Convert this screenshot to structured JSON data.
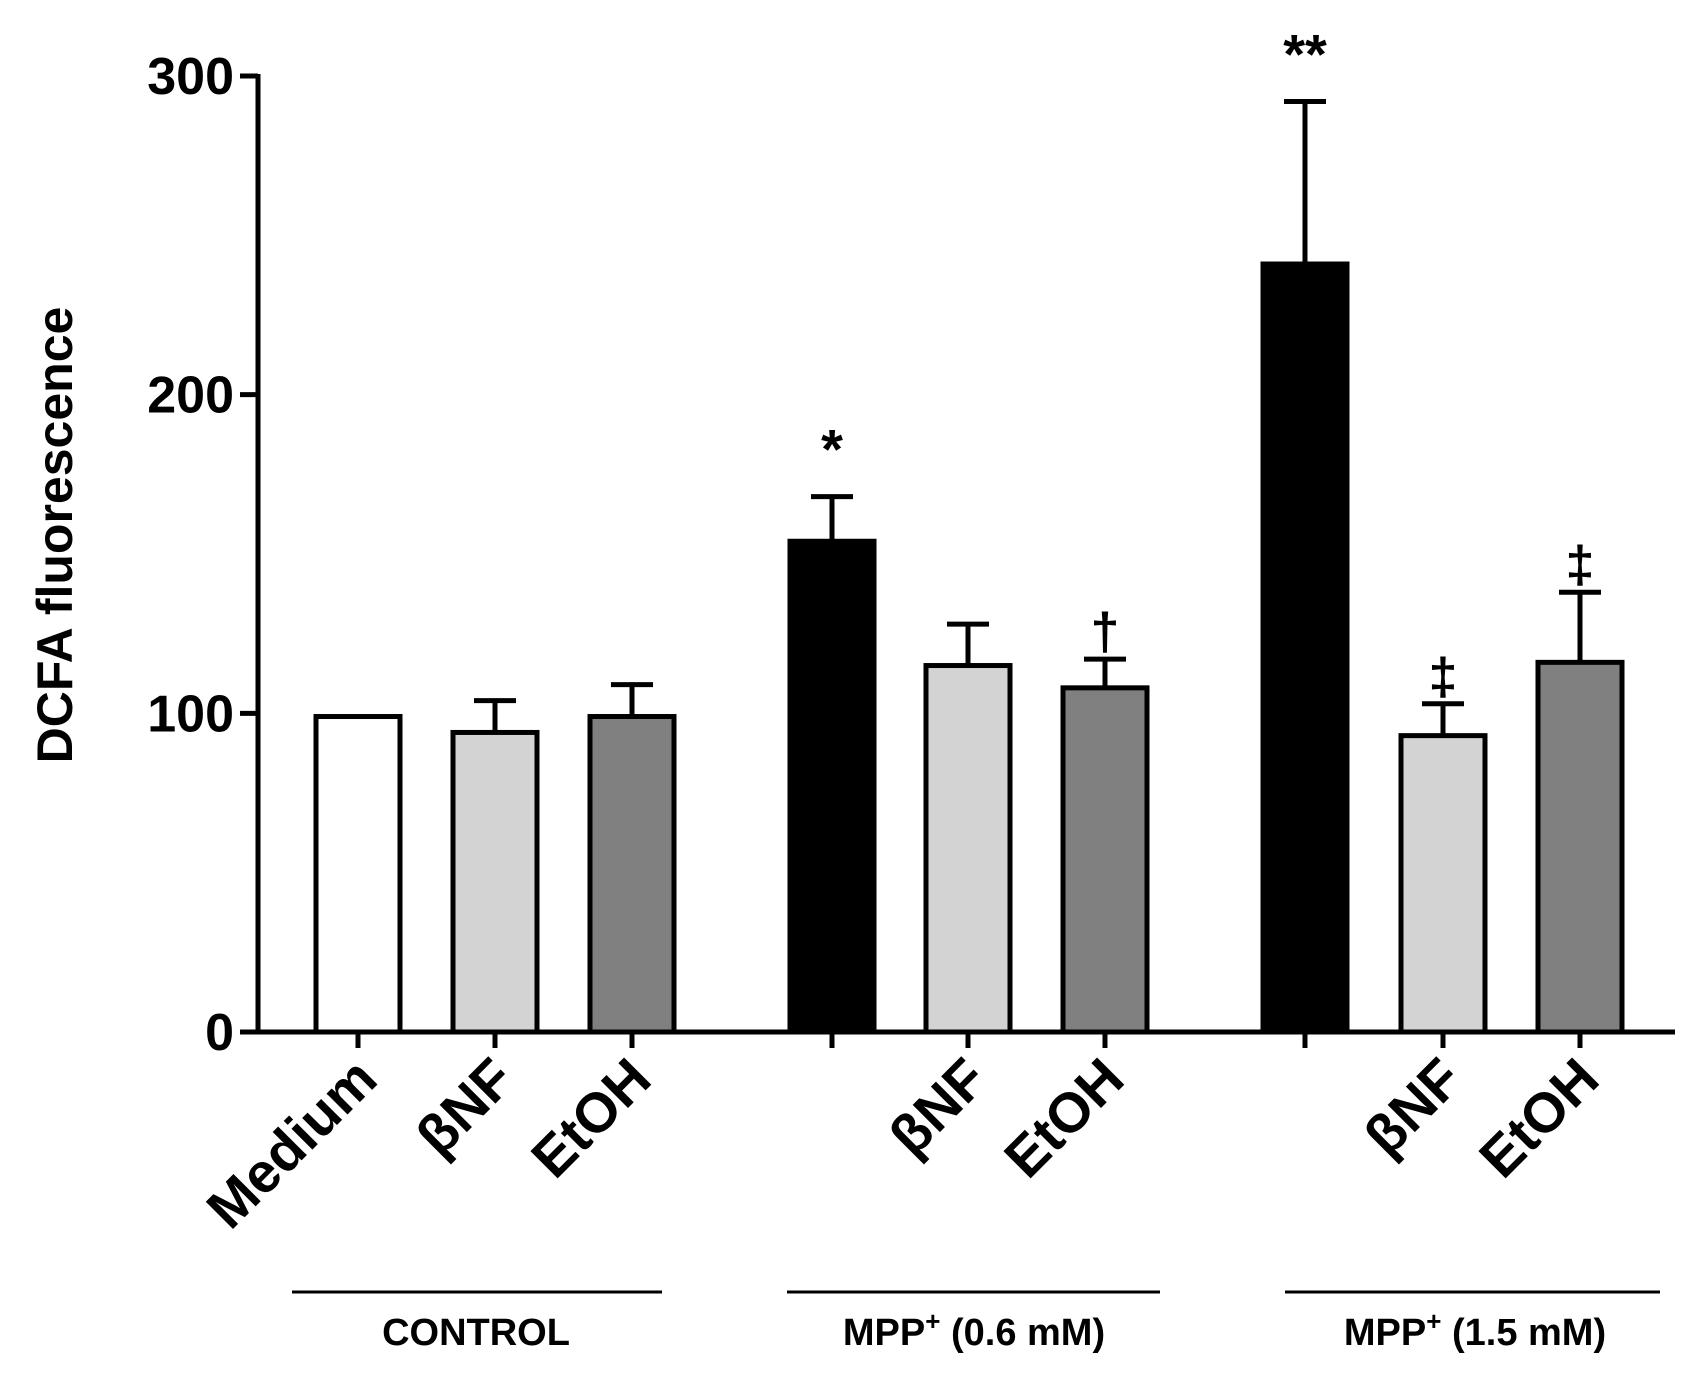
{
  "chart_data": {
    "type": "bar",
    "title": "",
    "xlabel": "",
    "ylabel": "DCFA fluorescence",
    "ylim": [
      0,
      300
    ],
    "yticks": [
      "0",
      "100",
      "200",
      "300"
    ],
    "grid": false,
    "groups": [
      {
        "name": "CONTROL",
        "label_main": "CONTROL",
        "label_sup": "",
        "label_rest": "",
        "bars": [
          {
            "label": "Medium",
            "value": 99,
            "error": 0,
            "fill": "#ffffff",
            "annotation": ""
          },
          {
            "label": "βNF",
            "value": 94,
            "error": 10,
            "fill": "#d3d3d3",
            "annotation": ""
          },
          {
            "label": "EtOH",
            "value": 99,
            "error": 10,
            "fill": "#808080",
            "annotation": ""
          }
        ]
      },
      {
        "name": "MPP+ (0.6 mM)",
        "label_main": "MPP",
        "label_sup": "+",
        "label_rest": " (0.6 mM)",
        "bars": [
          {
            "label": "",
            "value": 154,
            "error": 14,
            "fill": "#000000",
            "annotation": "*"
          },
          {
            "label": "βNF",
            "value": 115,
            "error": 13,
            "fill": "#d3d3d3",
            "annotation": ""
          },
          {
            "label": "EtOH",
            "value": 108,
            "error": 9,
            "fill": "#808080",
            "annotation": "†"
          }
        ]
      },
      {
        "name": "MPP+ (1.5 mM)",
        "label_main": "MPP",
        "label_sup": "+",
        "label_rest": " (1.5 mM)",
        "bars": [
          {
            "label": "",
            "value": 241,
            "error": 51,
            "fill": "#000000",
            "annotation": "**"
          },
          {
            "label": "βNF",
            "value": 93,
            "error": 10,
            "fill": "#d3d3d3",
            "annotation": "‡"
          },
          {
            "label": "EtOH",
            "value": 116,
            "error": 22,
            "fill": "#808080",
            "annotation": "‡"
          }
        ]
      }
    ]
  }
}
